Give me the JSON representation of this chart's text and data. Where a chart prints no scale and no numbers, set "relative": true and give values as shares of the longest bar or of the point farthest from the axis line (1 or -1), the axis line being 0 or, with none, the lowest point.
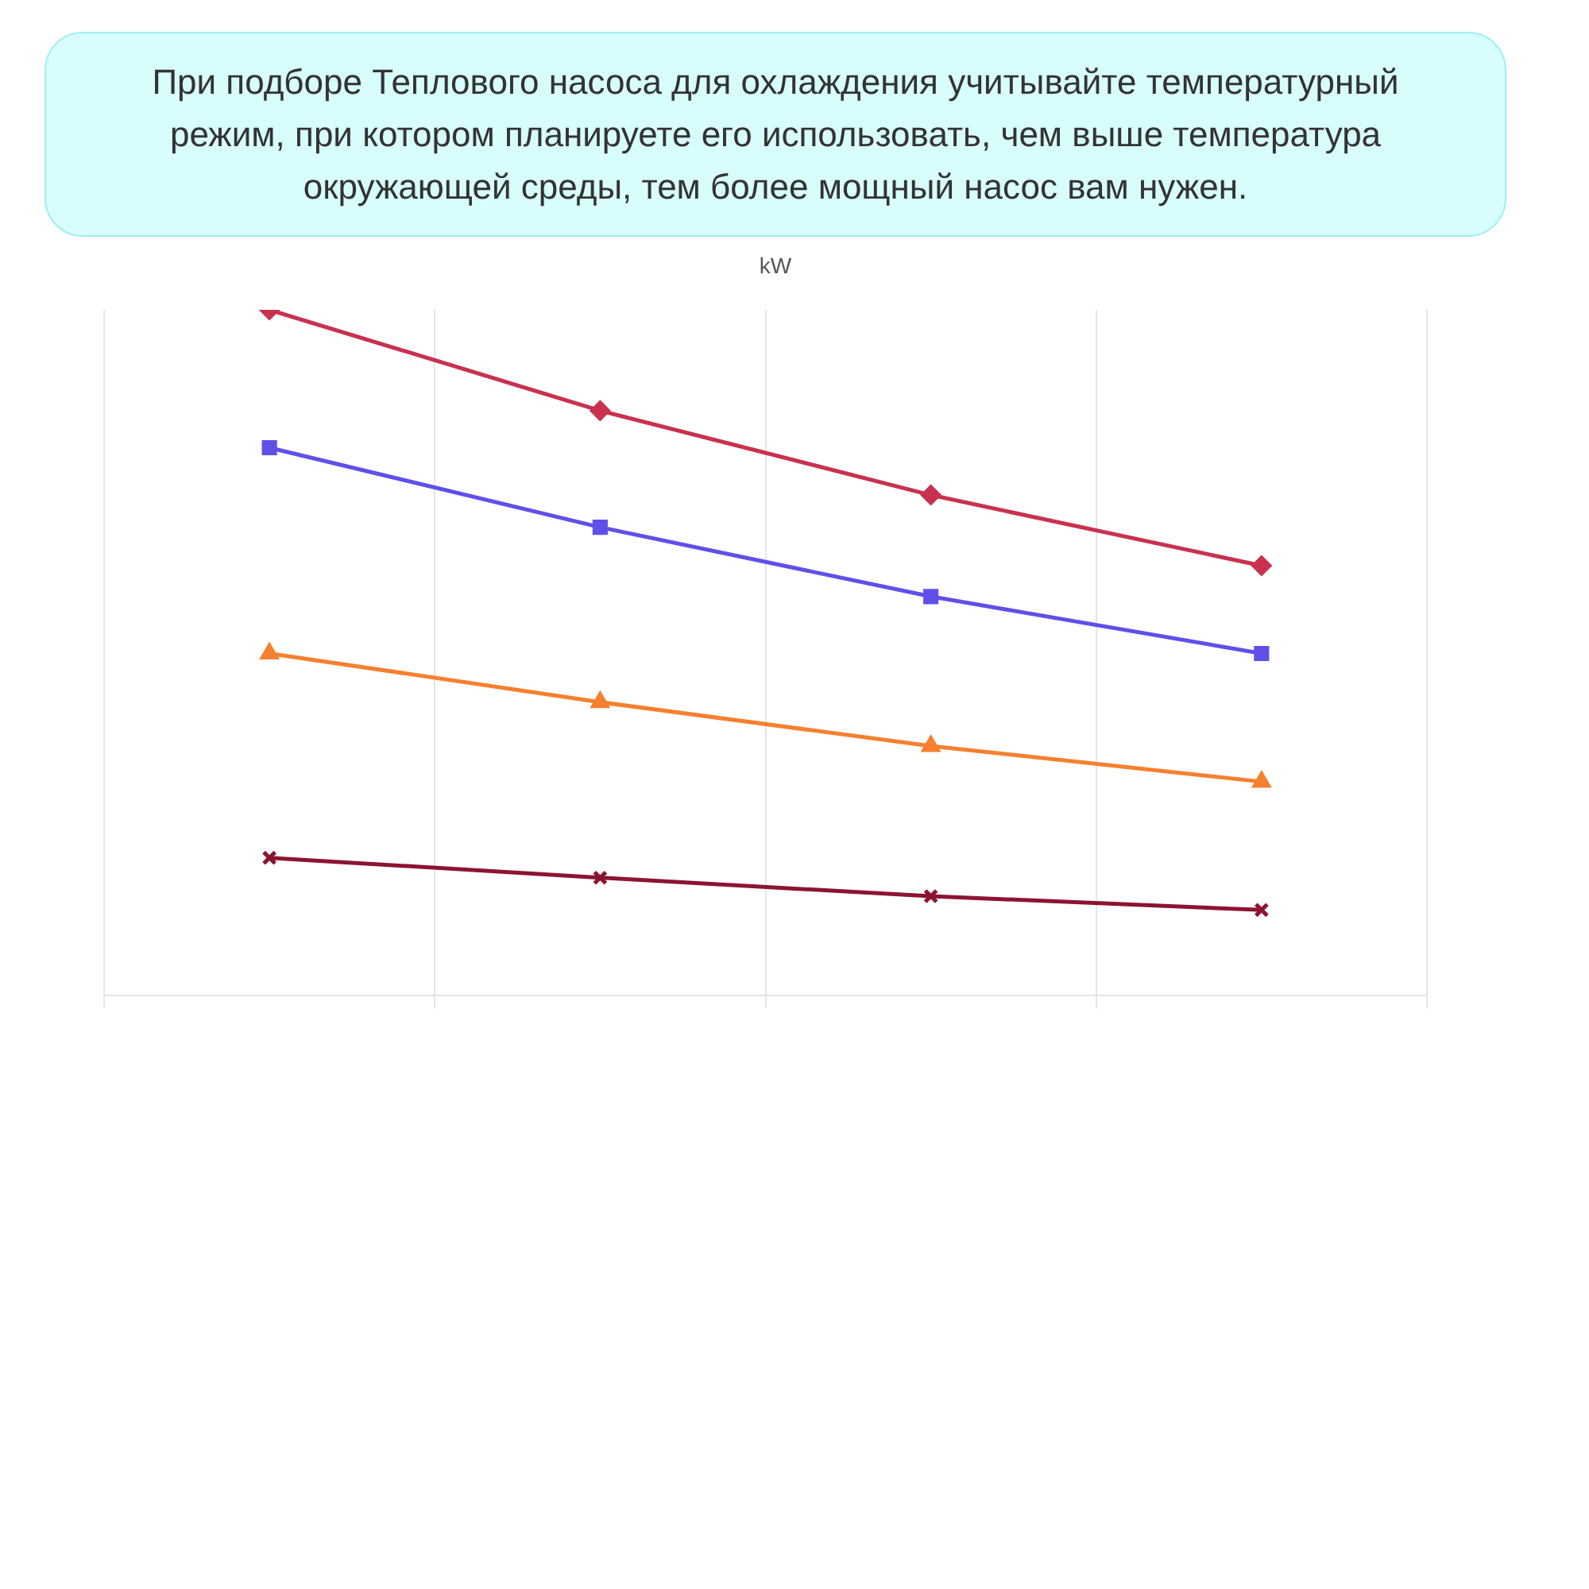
{
  "chart_data": {
    "type": "line",
    "title": "При подборе Теплового насоса для охлаждения учитывайте температурный режим, при котором планируете его использовать, чем выше температура окружающей среды, тем более мощный насос вам нужен.",
    "annotations": [
      "kW"
    ],
    "relative": true,
    "categories": [
      null,
      null,
      null,
      null
    ],
    "grid": "x",
    "series": [
      {
        "color": "#c8324f",
        "marker": "diamond",
        "values": [
          1,
          0.853,
          0.73,
          0.627
        ]
      },
      {
        "color": "#6050e8",
        "marker": "square",
        "values": [
          0.799,
          0.683,
          0.582,
          0.499
        ]
      },
      {
        "color": "#f58030",
        "marker": "triangle",
        "values": [
          0.499,
          0.428,
          0.364,
          0.312
        ]
      },
      {
        "color": "#8c1430",
        "marker": "cross",
        "values": [
          0.201,
          0.172,
          0.145,
          0.125
        ]
      }
    ]
  }
}
